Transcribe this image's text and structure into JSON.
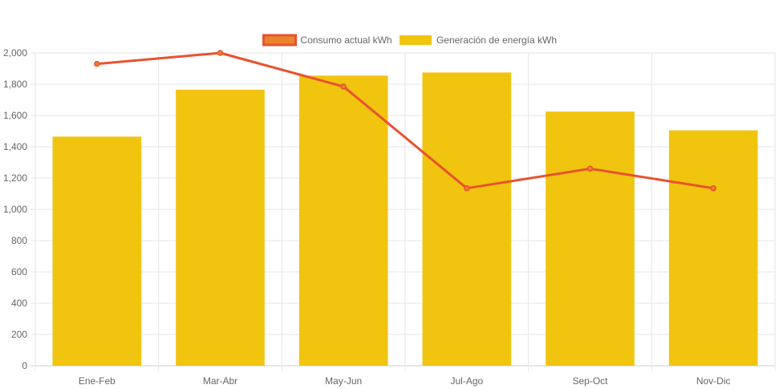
{
  "chart_data": {
    "type": "bar",
    "categories": [
      "Ene-Feb",
      "Mar-Abr",
      "May-Jun",
      "Jul-Ago",
      "Sep-Oct",
      "Nov-Dic"
    ],
    "series": [
      {
        "name": "Consumo actual kWh",
        "kind": "line",
        "color": "#e8522e",
        "fill": "#e8842e",
        "values": [
          1930,
          2000,
          1785,
          1135,
          1260,
          1135
        ]
      },
      {
        "name": "Generación de energía kWh",
        "kind": "bar",
        "color": "#f1c40f",
        "values": [
          1465,
          1765,
          1855,
          1875,
          1625,
          1505
        ]
      }
    ],
    "y_ticks": [
      "0",
      "200",
      "400",
      "600",
      "800",
      "1,000",
      "1,200",
      "1,400",
      "1,600",
      "1,800",
      "2,000"
    ],
    "ylim": [
      0,
      2000
    ],
    "grid": true,
    "legend_position": "top-center"
  }
}
